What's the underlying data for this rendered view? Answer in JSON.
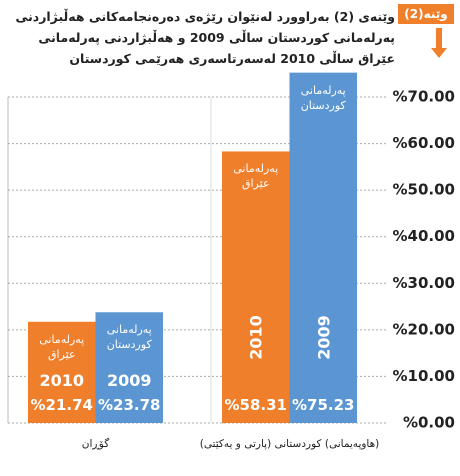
{
  "badge": "وێنە(2)",
  "chart_data": {
    "type": "bar",
    "title": "وێنەی (2) بەراوورد لەنێوان رێژەی دەرەنجامەکانی هەڵبژاردنی پەرلەمانی کوردستان ساڵی 2009 و هەڵبژاردنی پەرلەمانی عێراق ساڵی 2010 لەسەرتاسەری هەرێمی کوردستان",
    "categories": [
      "گۆڕان",
      "(هاوپەیمانی) کوردستانی (پارتی و یەکێتی)"
    ],
    "series": [
      {
        "name": "پەرلەمانی عێراق",
        "year": "2010",
        "color": "#f07f2c",
        "values": [
          21.74,
          58.31
        ],
        "value_labels": [
          "%21.74",
          "%58.31"
        ]
      },
      {
        "name": "پەرلەمانی کوردستان",
        "year": "2009",
        "color": "#5b96d2",
        "values": [
          23.78,
          75.23
        ],
        "value_labels": [
          "%23.78",
          "%75.23"
        ]
      }
    ],
    "ylim": [
      0,
      70
    ],
    "yticks": [
      {
        "value": 0,
        "label": "%0.00"
      },
      {
        "value": 10,
        "label": "%10.00"
      },
      {
        "value": 20,
        "label": "%20.00"
      },
      {
        "value": 30,
        "label": "%30.00"
      },
      {
        "value": 40,
        "label": "%40.00"
      },
      {
        "value": 50,
        "label": "%50.00"
      },
      {
        "value": 60,
        "label": "%60.00"
      },
      {
        "value": 70,
        "label": "%70.00"
      }
    ],
    "grid": true
  }
}
